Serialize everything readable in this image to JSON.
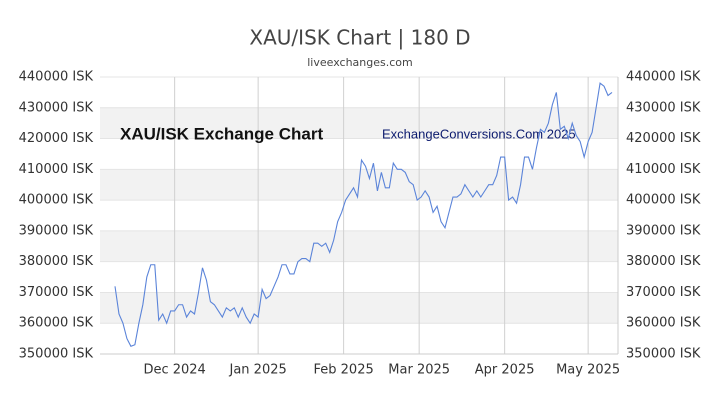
{
  "chart_data": {
    "type": "line",
    "title": "XAU/ISK Chart | 180 D",
    "subtitle": "liveexchanges.com",
    "annotations": [
      "XAU/ISK Exchange Chart",
      "ExchangeConversions.Com 2025"
    ],
    "series": [
      {
        "name": "XAU/ISK",
        "color": "#5b84d9",
        "values": [
          372000,
          363000,
          360000,
          355000,
          352500,
          353000,
          360000,
          366000,
          375000,
          379000,
          379000,
          361000,
          363000,
          360000,
          364000,
          364000,
          366000,
          366000,
          362000,
          364000,
          363000,
          370000,
          378000,
          374000,
          367000,
          366000,
          364000,
          362000,
          365000,
          364000,
          365000,
          362000,
          365000,
          362000,
          360000,
          363000,
          362000,
          371000,
          368000,
          369000,
          372000,
          375000,
          379000,
          379000,
          376000,
          376000,
          380000,
          381000,
          381000,
          380000,
          386000,
          386000,
          385000,
          386000,
          383000,
          387000,
          393000,
          396000,
          400000,
          402000,
          404000,
          401000,
          413000,
          411000,
          407000,
          412000,
          403000,
          409000,
          404000,
          404000,
          412000,
          410000,
          410000,
          409000,
          406000,
          405000,
          400000,
          401000,
          403000,
          401000,
          396000,
          398000,
          393000,
          391000,
          396000,
          401000,
          401000,
          402000,
          405000,
          403000,
          401000,
          403000,
          401000,
          403000,
          405000,
          405000,
          408000,
          414000,
          414000,
          400000,
          401000,
          399000,
          405000,
          414000,
          414000,
          410000,
          417000,
          423000,
          422000,
          425000,
          431000,
          435000,
          423000,
          424000,
          420000,
          425000,
          421000,
          419000,
          414000,
          419000,
          422000,
          430000,
          438000,
          437000,
          434000,
          435000
        ]
      }
    ],
    "xlim": [
      0,
      125
    ],
    "xticks": [
      {
        "value": 15,
        "label": "Dec 2024"
      },
      {
        "value": 36,
        "label": "Jan 2025"
      },
      {
        "value": 57.5,
        "label": "Feb 2025"
      },
      {
        "value": 76.5,
        "label": "Mar 2025"
      },
      {
        "value": 98,
        "label": "Apr 2025"
      },
      {
        "value": 119,
        "label": "May 2025"
      }
    ],
    "ylim": [
      350000,
      440000
    ],
    "yticks": [
      {
        "value": 350000,
        "label": "350000 ISK"
      },
      {
        "value": 360000,
        "label": "360000 ISK"
      },
      {
        "value": 370000,
        "label": "370000 ISK"
      },
      {
        "value": 380000,
        "label": "380000 ISK"
      },
      {
        "value": 390000,
        "label": "390000 ISK"
      },
      {
        "value": 400000,
        "label": "400000 ISK"
      },
      {
        "value": 410000,
        "label": "410000 ISK"
      },
      {
        "value": 420000,
        "label": "420000 ISK"
      },
      {
        "value": 430000,
        "label": "430000 ISK"
      },
      {
        "value": 440000,
        "label": "440000 ISK"
      }
    ],
    "grid": true
  }
}
